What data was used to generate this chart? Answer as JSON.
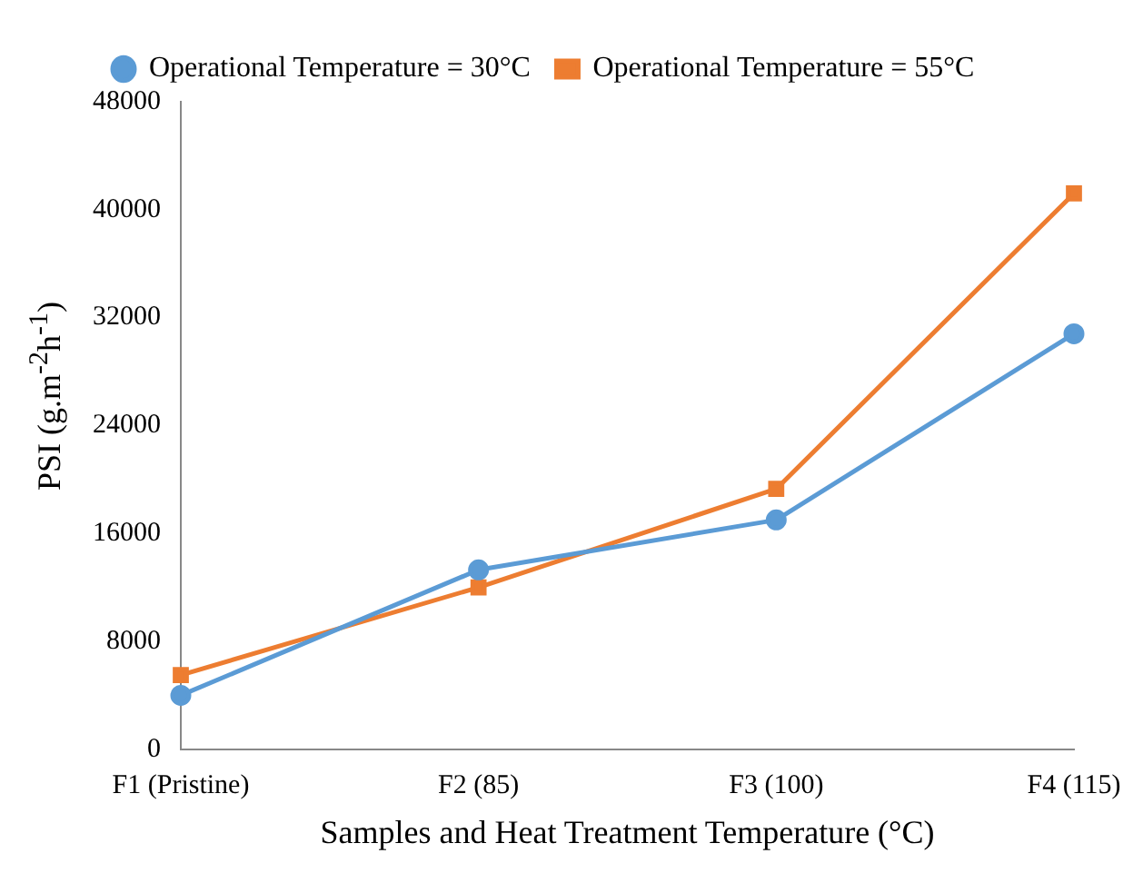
{
  "chart_data": {
    "type": "line",
    "xlabel": "Samples and Heat Treatment Temperature (°C)",
    "ylabel": "PSI (g.m$^{-2}$h$^{-1}$)",
    "categories": [
      "F1 (Pristine)",
      "F2 (85)",
      "F3 (100)",
      "F4 (115)"
    ],
    "series": [
      {
        "name": "Operational Temperature = 30°C",
        "color": "#5b9bd5",
        "marker": "circle",
        "values": [
          4000,
          13300,
          17000,
          30800
        ]
      },
      {
        "name": "Operational Temperature = 55°C",
        "color": "#ed7d31",
        "marker": "square",
        "values": [
          5500,
          12000,
          19300,
          41200
        ]
      }
    ],
    "ylim": [
      0,
      48000
    ],
    "yticks": [
      0,
      8000,
      16000,
      24000,
      32000,
      40000,
      48000
    ],
    "grid": false,
    "legend": "top left",
    "line_style": "solid"
  }
}
